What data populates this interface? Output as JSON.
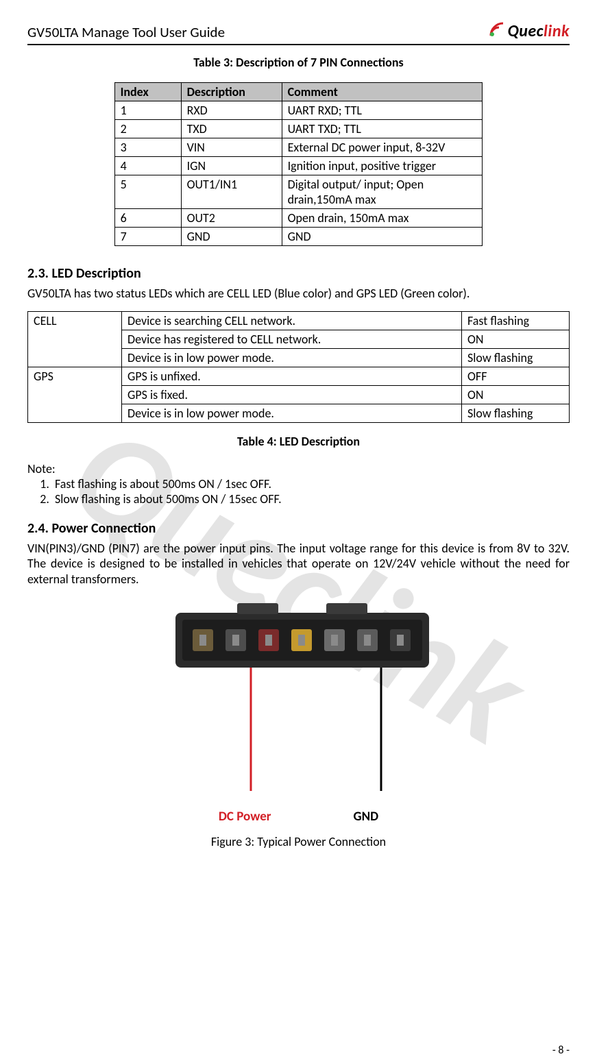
{
  "header": {
    "doc_title": "GV50LTA Manage Tool User Guide",
    "logo_text_black": "Quec",
    "logo_text_red": "link",
    "logo_signal_color": "#d21f26",
    "logo_dot_color": "#39b44a"
  },
  "watermark": "Queclink",
  "table3": {
    "caption": "Table 3: Description of 7 PIN Connections",
    "columns": [
      "Index",
      "Description",
      "Comment"
    ],
    "rows": [
      [
        "1",
        "RXD",
        "UART RXD; TTL"
      ],
      [
        "2",
        "TXD",
        "UART TXD; TTL"
      ],
      [
        "3",
        "VIN",
        "External DC power input, 8-32V"
      ],
      [
        "4",
        "IGN",
        "Ignition input, positive trigger"
      ],
      [
        "5",
        "OUT1/IN1",
        "Digital output/ input; Open drain,150mA max"
      ],
      [
        "6",
        "OUT2",
        "Open drain, 150mA max"
      ],
      [
        "7",
        "GND",
        "GND"
      ]
    ]
  },
  "section23": {
    "heading": "2.3. LED Description",
    "intro": "GV50LTA has two status LEDs which are CELL LED (Blue color) and GPS LED (Green color)."
  },
  "led_table": {
    "rows": [
      [
        "CELL",
        "Device is searching CELL network.",
        "Fast flashing"
      ],
      [
        "",
        "Device has registered to CELL network.",
        "ON"
      ],
      [
        "",
        "Device is in low power mode.",
        "Slow flashing"
      ],
      [
        "GPS",
        "GPS is unfixed.",
        "OFF"
      ],
      [
        "",
        "GPS is fixed.",
        "ON"
      ],
      [
        "",
        "Device is in low power mode.",
        "Slow flashing"
      ]
    ],
    "caption": "Table 4: LED Description"
  },
  "notes": {
    "title": "Note:",
    "items": [
      "Fast flashing is about 500ms ON / 1sec OFF.",
      "Slow flashing is about 500ms ON / 15sec OFF."
    ]
  },
  "section24": {
    "heading": "2.4. Power Connection",
    "body": "VIN(PIN3)/GND (PIN7) are the power input pins. The input voltage range for this device is from 8V to 32V. The device is designed to be installed in vehicles that operate on 12V/24V vehicle without the need for external transformers."
  },
  "figure3": {
    "dc_label": "DC Power",
    "gnd_label": "GND",
    "caption": "Figure 3: Typical Power Connection",
    "dc_line_color": "#d21f26",
    "gnd_line_color": "#000000",
    "connector_body_color": "#2b2b2b",
    "connector_tab_color": "#3a3a3a",
    "pin_colors": [
      "#6b5b3a",
      "#4d4d4d",
      "#7a2b2b",
      "#c49a2e",
      "#6b6b6b",
      "#5b5b5b",
      "#3a3a3a"
    ]
  },
  "page_number": "- 8 -"
}
